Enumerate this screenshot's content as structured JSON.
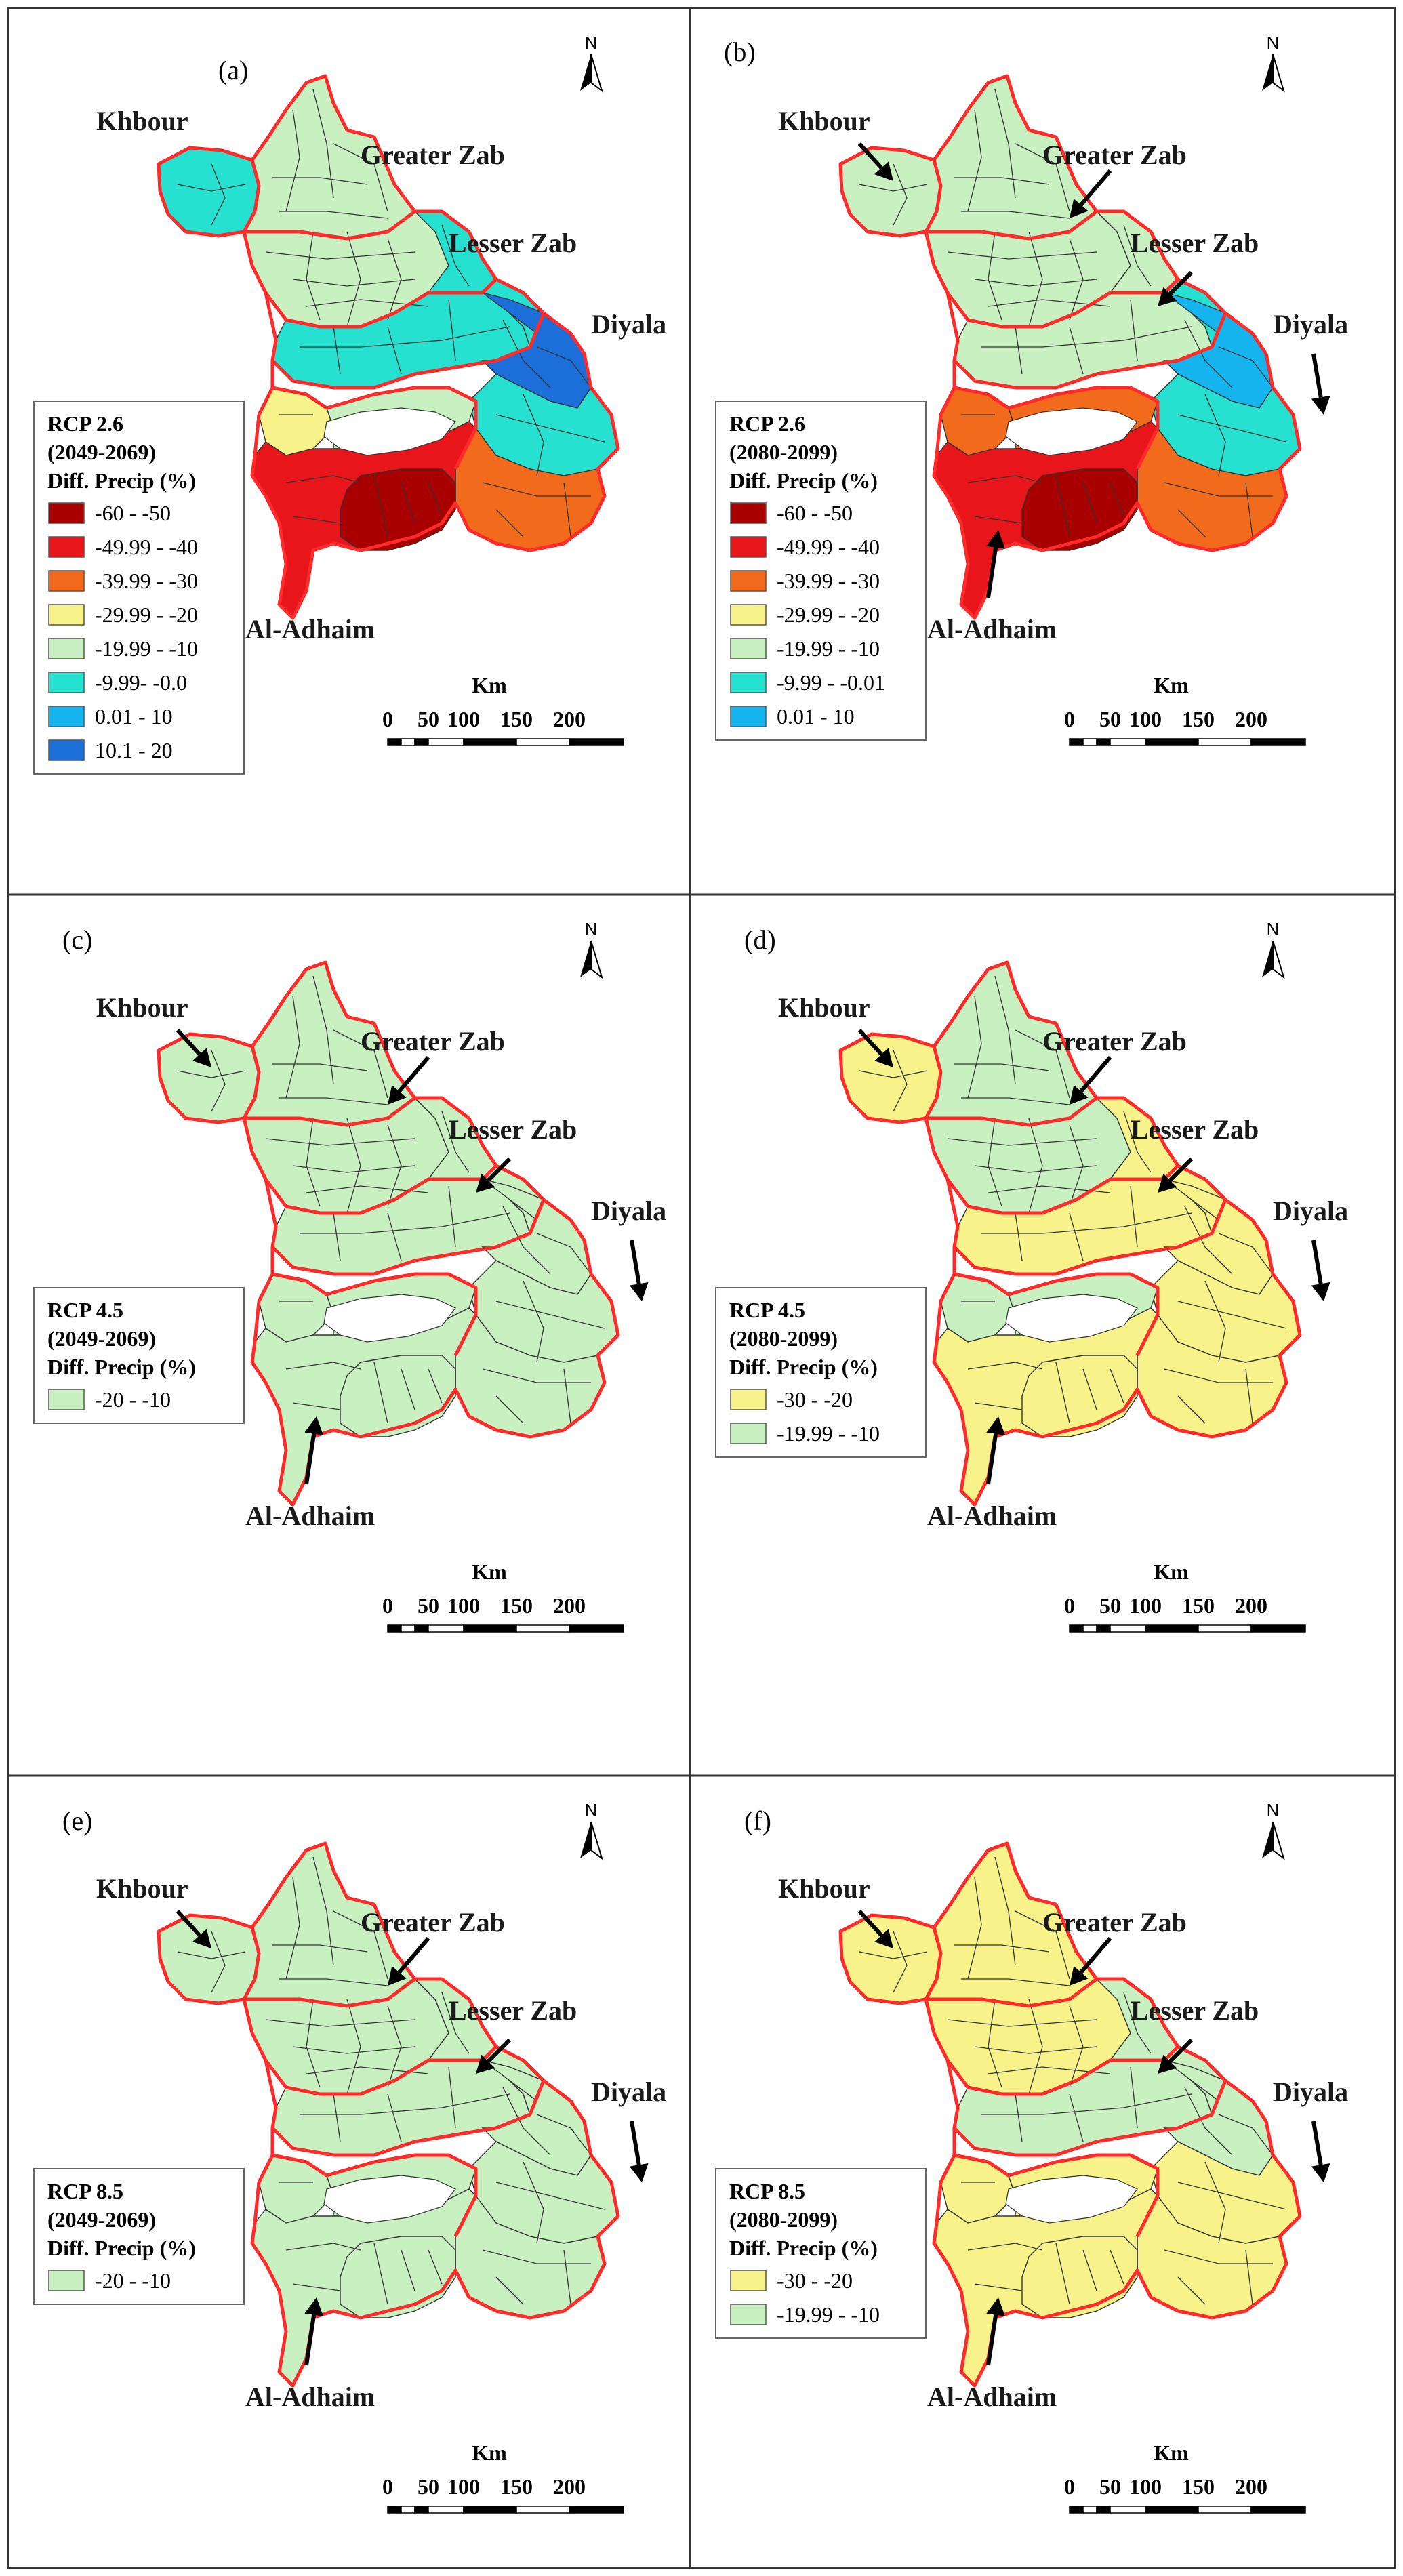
{
  "figure": {
    "north_label": "N",
    "scale_unit": "Km",
    "scale_ticks": [
      "0",
      "50",
      "100",
      "150",
      "200"
    ],
    "colors": {
      "boundary": "#ff2a2a",
      "subbasin_line": "#333333",
      "frame": "#333333"
    }
  },
  "panels": [
    {
      "letter": "(a)",
      "scenario": "RCP 2.6",
      "period": "(2049-2069)",
      "variable": "Diff. Precip (%)",
      "show_arrows": false,
      "legend": [
        {
          "label": "-60 - -50",
          "color": "#a80000"
        },
        {
          "label": "-49.99 - -40",
          "color": "#e8151b"
        },
        {
          "label": "-39.99 - -30",
          "color": "#f26a1b"
        },
        {
          "label": "-29.99 - -20",
          "color": "#f7f28a"
        },
        {
          "label": "-19.99 - -10",
          "color": "#c8f0c0"
        },
        {
          "label": "-9.99- -0.0",
          "color": "#26e0d0"
        },
        {
          "label": "0.01 - 10",
          "color": "#16b4ee"
        },
        {
          "label": "10.1 - 20",
          "color": "#1c6fd8"
        }
      ],
      "region_colors": {
        "khbour": "#26e0d0",
        "gzab_n": "#c8f0c0",
        "gzab_s": "#c8f0c0",
        "lzab_n": "#26e0d0",
        "lzab_s": "#26e0d0",
        "diyala_ne": "#1c6fd8",
        "diyala_nw": "#26e0d0",
        "diyala_mid": "#26e0d0",
        "diyala_s": "#f26a1b",
        "adhaim_w": "#f7f28a",
        "adhaim_e": "#c8f0c0",
        "adhaim_s": "#e8151b",
        "adhaim_core": "#a80000"
      }
    },
    {
      "letter": "(b)",
      "scenario": "RCP 2.6",
      "period": "(2080-2099)",
      "variable": "Diff. Precip (%)",
      "show_arrows": true,
      "legend": [
        {
          "label": "-60 - -50",
          "color": "#a80000"
        },
        {
          "label": "-49.99 - -40",
          "color": "#e8151b"
        },
        {
          "label": "-39.99 - -30",
          "color": "#f26a1b"
        },
        {
          "label": "-29.99 - -20",
          "color": "#f7f28a"
        },
        {
          "label": "-19.99 - -10",
          "color": "#c8f0c0"
        },
        {
          "label": "-9.99 - -0.01",
          "color": "#26e0d0"
        },
        {
          "label": "0.01 - 10",
          "color": "#16b4ee"
        }
      ],
      "region_colors": {
        "khbour": "#c8f0c0",
        "gzab_n": "#c8f0c0",
        "gzab_s": "#c8f0c0",
        "lzab_n": "#c8f0c0",
        "lzab_s": "#c8f0c0",
        "diyala_ne": "#16b4ee",
        "diyala_nw": "#26e0d0",
        "diyala_mid": "#26e0d0",
        "diyala_s": "#f26a1b",
        "adhaim_w": "#f26a1b",
        "adhaim_e": "#f26a1b",
        "adhaim_s": "#e8151b",
        "adhaim_core": "#a80000"
      }
    },
    {
      "letter": "(c)",
      "scenario": "RCP 4.5",
      "period": "(2049-2069)",
      "variable": "Diff. Precip (%)",
      "show_arrows": true,
      "legend": [
        {
          "label": "-20 - -10",
          "color": "#c8f0c0"
        }
      ],
      "region_colors": {
        "khbour": "#c8f0c0",
        "gzab_n": "#c8f0c0",
        "gzab_s": "#c8f0c0",
        "lzab_n": "#c8f0c0",
        "lzab_s": "#c8f0c0",
        "diyala_ne": "#c8f0c0",
        "diyala_nw": "#c8f0c0",
        "diyala_mid": "#c8f0c0",
        "diyala_s": "#c8f0c0",
        "adhaim_w": "#c8f0c0",
        "adhaim_e": "#c8f0c0",
        "adhaim_s": "#c8f0c0",
        "adhaim_core": "#c8f0c0"
      }
    },
    {
      "letter": "(d)",
      "scenario": "RCP 4.5",
      "period": "(2080-2099)",
      "variable": "Diff. Precip (%)",
      "show_arrows": true,
      "legend": [
        {
          "label": "-30 - -20",
          "color": "#f7f28a"
        },
        {
          "label": "-19.99 - -10",
          "color": "#c8f0c0"
        }
      ],
      "region_colors": {
        "khbour": "#f7f28a",
        "gzab_n": "#c8f0c0",
        "gzab_s": "#c8f0c0",
        "lzab_n": "#f7f28a",
        "lzab_s": "#f7f28a",
        "diyala_ne": "#f7f28a",
        "diyala_nw": "#f7f28a",
        "diyala_mid": "#f7f28a",
        "diyala_s": "#f7f28a",
        "adhaim_w": "#c8f0c0",
        "adhaim_e": "#c8f0c0",
        "adhaim_s": "#f7f28a",
        "adhaim_core": "#f7f28a"
      }
    },
    {
      "letter": "(e)",
      "scenario": "RCP 8.5",
      "period": "(2049-2069)",
      "variable": "Diff. Precip (%)",
      "show_arrows": true,
      "legend": [
        {
          "label": "-20 - -10",
          "color": "#c8f0c0"
        }
      ],
      "region_colors": {
        "khbour": "#c8f0c0",
        "gzab_n": "#c8f0c0",
        "gzab_s": "#c8f0c0",
        "lzab_n": "#c8f0c0",
        "lzab_s": "#c8f0c0",
        "diyala_ne": "#c8f0c0",
        "diyala_nw": "#c8f0c0",
        "diyala_mid": "#c8f0c0",
        "diyala_s": "#c8f0c0",
        "adhaim_w": "#c8f0c0",
        "adhaim_e": "#c8f0c0",
        "adhaim_s": "#c8f0c0",
        "adhaim_core": "#c8f0c0"
      }
    },
    {
      "letter": "(f)",
      "scenario": "RCP 8.5",
      "period": "(2080-2099)",
      "variable": "Diff. Precip (%)",
      "show_arrows": true,
      "legend": [
        {
          "label": "-30 - -20",
          "color": "#f7f28a"
        },
        {
          "label": "-19.99 - -10",
          "color": "#c8f0c0"
        }
      ],
      "region_colors": {
        "khbour": "#f7f28a",
        "gzab_n": "#f7f28a",
        "gzab_s": "#f7f28a",
        "lzab_n": "#c8f0c0",
        "lzab_s": "#c8f0c0",
        "diyala_ne": "#c8f0c0",
        "diyala_nw": "#c8f0c0",
        "diyala_mid": "#f7f28a",
        "diyala_s": "#f7f28a",
        "adhaim_w": "#f7f28a",
        "adhaim_e": "#f7f28a",
        "adhaim_s": "#f7f28a",
        "adhaim_core": "#f7f28a"
      }
    }
  ],
  "basin_labels": {
    "khbour": "Khbour",
    "greater_zab": "Greater Zab",
    "lesser_zab": "Lesser Zab",
    "diyala": "Diyala",
    "al_adhaim": "Al-Adhaim"
  }
}
